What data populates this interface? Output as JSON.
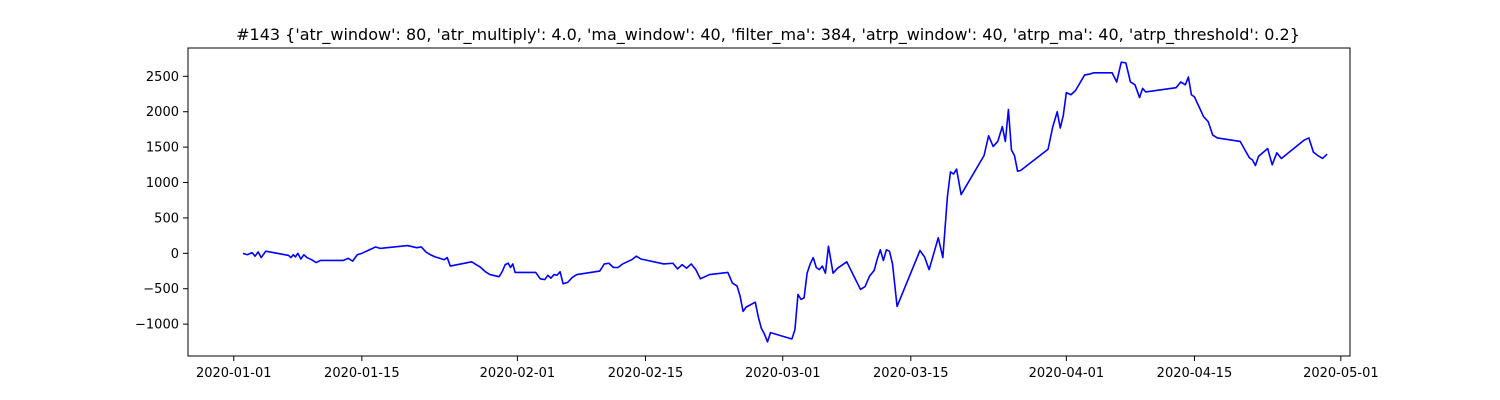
{
  "chart_data": {
    "type": "line",
    "title": "#143 {'atr_window': 80, 'atr_multiply': 4.0, 'ma_window': 40, 'filter_ma': 384, 'atrp_window': 40, 'atrp_ma': 40, 'atrp_threshold': 0.2}",
    "xlabel": "",
    "ylabel": "",
    "xlim": [
      "2019-12-27",
      "2020-05-02"
    ],
    "ylim": [
      -1450,
      2900
    ],
    "grid": false,
    "legend": "none",
    "x_ticks": [
      "2020-01-01",
      "2020-01-15",
      "2020-02-01",
      "2020-02-15",
      "2020-03-01",
      "2020-03-15",
      "2020-04-01",
      "2020-04-15",
      "2020-05-01"
    ],
    "y_ticks": [
      -1000,
      -500,
      0,
      500,
      1000,
      1500,
      2000,
      2500
    ],
    "series": [
      {
        "color": "#0000ff",
        "points": [
          [
            "2020-01-02",
            0
          ],
          [
            "2020-01-02",
            -20
          ],
          [
            "2020-01-03",
            10
          ],
          [
            "2020-01-03",
            -40
          ],
          [
            "2020-01-03",
            20
          ],
          [
            "2020-01-04",
            -60
          ],
          [
            "2020-01-04",
            30
          ],
          [
            "2020-01-07",
            -30
          ],
          [
            "2020-01-07",
            -60
          ],
          [
            "2020-01-07",
            -20
          ],
          [
            "2020-01-07",
            -50
          ],
          [
            "2020-01-08",
            0
          ],
          [
            "2020-01-08",
            -80
          ],
          [
            "2020-01-08",
            -20
          ],
          [
            "2020-01-09",
            -60
          ],
          [
            "2020-01-09",
            -90
          ],
          [
            "2020-01-10",
            -130
          ],
          [
            "2020-01-10",
            -100
          ],
          [
            "2020-01-13",
            -100
          ],
          [
            "2020-01-13",
            -70
          ],
          [
            "2020-01-14",
            -110
          ],
          [
            "2020-01-14",
            -20
          ],
          [
            "2020-01-15",
            0
          ],
          [
            "2020-01-16",
            60
          ],
          [
            "2020-01-16",
            90
          ],
          [
            "2020-01-17",
            70
          ],
          [
            "2020-01-20",
            110
          ],
          [
            "2020-01-21",
            80
          ],
          [
            "2020-01-21",
            90
          ],
          [
            "2020-01-22",
            20
          ],
          [
            "2020-01-22",
            -20
          ],
          [
            "2020-01-23",
            -50
          ],
          [
            "2020-01-23",
            -70
          ],
          [
            "2020-01-24",
            -90
          ],
          [
            "2020-01-24",
            -60
          ],
          [
            "2020-01-24",
            -180
          ],
          [
            "2020-01-27",
            -120
          ],
          [
            "2020-01-28",
            -200
          ],
          [
            "2020-01-28",
            -260
          ],
          [
            "2020-01-29",
            -300
          ],
          [
            "2020-01-30",
            -330
          ],
          [
            "2020-01-30",
            -260
          ],
          [
            "2020-01-30",
            -160
          ],
          [
            "2020-01-31",
            -140
          ],
          [
            "2020-01-31",
            -200
          ],
          [
            "2020-01-31",
            -150
          ],
          [
            "2020-01-31",
            -270
          ],
          [
            "2020-02-03",
            -270
          ],
          [
            "2020-02-03",
            -360
          ],
          [
            "2020-02-04",
            -370
          ],
          [
            "2020-02-04",
            -310
          ],
          [
            "2020-02-04",
            -350
          ],
          [
            "2020-02-05",
            -300
          ],
          [
            "2020-02-05",
            -310
          ],
          [
            "2020-02-05",
            -260
          ],
          [
            "2020-02-06",
            -430
          ],
          [
            "2020-02-06",
            -410
          ],
          [
            "2020-02-07",
            -340
          ],
          [
            "2020-02-07",
            -300
          ],
          [
            "2020-02-10",
            -250
          ],
          [
            "2020-02-10",
            -150
          ],
          [
            "2020-02-11",
            -140
          ],
          [
            "2020-02-11",
            -200
          ],
          [
            "2020-02-12",
            -200
          ],
          [
            "2020-02-12",
            -150
          ],
          [
            "2020-02-13",
            -120
          ],
          [
            "2020-02-13",
            -90
          ],
          [
            "2020-02-14",
            -40
          ],
          [
            "2020-02-14",
            -80
          ],
          [
            "2020-02-17",
            -150
          ],
          [
            "2020-02-18",
            -140
          ],
          [
            "2020-02-18",
            -220
          ],
          [
            "2020-02-19",
            -160
          ],
          [
            "2020-02-19",
            -210
          ],
          [
            "2020-02-20",
            -150
          ],
          [
            "2020-02-20",
            -230
          ],
          [
            "2020-02-21",
            -360
          ],
          [
            "2020-02-22",
            -300
          ],
          [
            "2020-02-24",
            -270
          ],
          [
            "2020-02-24",
            -420
          ],
          [
            "2020-02-25",
            -460
          ],
          [
            "2020-02-25",
            -600
          ],
          [
            "2020-02-25",
            -820
          ],
          [
            "2020-02-26",
            -760
          ],
          [
            "2020-02-27",
            -690
          ],
          [
            "2020-02-27",
            -900
          ],
          [
            "2020-02-27",
            -1060
          ],
          [
            "2020-02-28",
            -1140
          ],
          [
            "2020-02-28",
            -1250
          ],
          [
            "2020-02-28",
            -1120
          ],
          [
            "2020-03-02",
            -1210
          ],
          [
            "2020-03-02",
            -1080
          ],
          [
            "2020-03-02",
            -580
          ],
          [
            "2020-03-03",
            -650
          ],
          [
            "2020-03-03",
            -630
          ],
          [
            "2020-03-03",
            -280
          ],
          [
            "2020-03-04",
            -150
          ],
          [
            "2020-03-04",
            -60
          ],
          [
            "2020-03-04",
            -200
          ],
          [
            "2020-03-05",
            -230
          ],
          [
            "2020-03-05",
            -180
          ],
          [
            "2020-03-05",
            -280
          ],
          [
            "2020-03-06",
            100
          ],
          [
            "2020-03-06",
            -280
          ],
          [
            "2020-03-07",
            -210
          ],
          [
            "2020-03-08",
            -120
          ],
          [
            "2020-03-09",
            -380
          ],
          [
            "2020-03-09",
            -510
          ],
          [
            "2020-03-10",
            -470
          ],
          [
            "2020-03-10",
            -320
          ],
          [
            "2020-03-11",
            -240
          ],
          [
            "2020-03-11",
            -80
          ],
          [
            "2020-03-11",
            50
          ],
          [
            "2020-03-12",
            -100
          ],
          [
            "2020-03-12",
            50
          ],
          [
            "2020-03-12",
            30
          ],
          [
            "2020-03-13",
            -150
          ],
          [
            "2020-03-13",
            -750
          ],
          [
            "2020-03-16",
            40
          ],
          [
            "2020-03-16",
            -50
          ],
          [
            "2020-03-17",
            -230
          ],
          [
            "2020-03-18",
            220
          ],
          [
            "2020-03-18",
            -60
          ],
          [
            "2020-03-19",
            800
          ],
          [
            "2020-03-19",
            1150
          ],
          [
            "2020-03-19",
            1120
          ],
          [
            "2020-03-20",
            1190
          ],
          [
            "2020-03-20",
            830
          ],
          [
            "2020-03-23",
            1380
          ],
          [
            "2020-03-23",
            1660
          ],
          [
            "2020-03-24",
            1510
          ],
          [
            "2020-03-24",
            1580
          ],
          [
            "2020-03-25",
            1790
          ],
          [
            "2020-03-25",
            1580
          ],
          [
            "2020-03-25",
            2030
          ],
          [
            "2020-03-26",
            1460
          ],
          [
            "2020-03-26",
            1380
          ],
          [
            "2020-03-26",
            1160
          ],
          [
            "2020-03-27",
            1170
          ],
          [
            "2020-03-30",
            1470
          ],
          [
            "2020-03-30",
            1780
          ],
          [
            "2020-03-31",
            2000
          ],
          [
            "2020-03-31",
            1770
          ],
          [
            "2020-03-31",
            1950
          ],
          [
            "2020-04-01",
            2270
          ],
          [
            "2020-04-01",
            2240
          ],
          [
            "2020-04-02",
            2300
          ],
          [
            "2020-04-03",
            2520
          ],
          [
            "2020-04-03",
            2530
          ],
          [
            "2020-04-04",
            2550
          ],
          [
            "2020-04-06",
            2550
          ],
          [
            "2020-04-06",
            2420
          ],
          [
            "2020-04-07",
            2700
          ],
          [
            "2020-04-07",
            2690
          ],
          [
            "2020-04-08",
            2420
          ],
          [
            "2020-04-08",
            2380
          ],
          [
            "2020-04-09",
            2200
          ],
          [
            "2020-04-09",
            2330
          ],
          [
            "2020-04-09",
            2280
          ],
          [
            "2020-04-13",
            2340
          ],
          [
            "2020-04-13",
            2420
          ],
          [
            "2020-04-14",
            2380
          ],
          [
            "2020-04-14",
            2490
          ],
          [
            "2020-04-14",
            2240
          ],
          [
            "2020-04-15",
            2210
          ],
          [
            "2020-04-16",
            1930
          ],
          [
            "2020-04-16",
            1860
          ],
          [
            "2020-04-17",
            1670
          ],
          [
            "2020-04-17",
            1630
          ],
          [
            "2020-04-20",
            1580
          ],
          [
            "2020-04-21",
            1350
          ],
          [
            "2020-04-21",
            1320
          ],
          [
            "2020-04-21",
            1240
          ],
          [
            "2020-04-22",
            1370
          ],
          [
            "2020-04-23",
            1480
          ],
          [
            "2020-04-23",
            1250
          ],
          [
            "2020-04-24",
            1420
          ],
          [
            "2020-04-24",
            1340
          ],
          [
            "2020-04-27",
            1600
          ],
          [
            "2020-04-27",
            1630
          ],
          [
            "2020-04-28",
            1430
          ],
          [
            "2020-04-28",
            1380
          ],
          [
            "2020-04-29",
            1340
          ],
          [
            "2020-04-29",
            1400
          ]
        ]
      }
    ]
  }
}
